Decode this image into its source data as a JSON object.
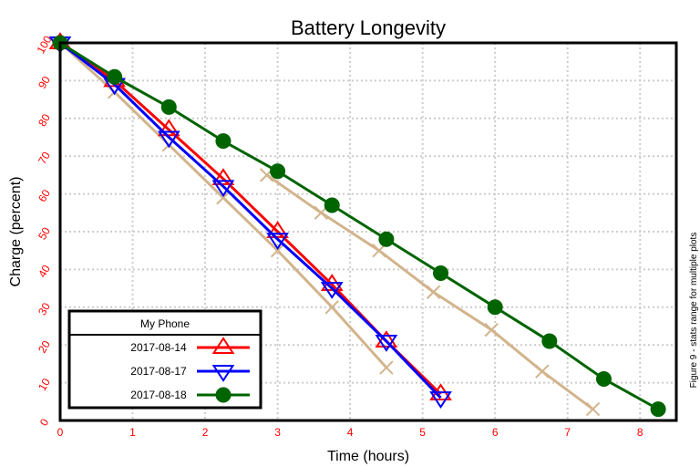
{
  "chart_data": {
    "type": "line",
    "title": "Battery Longevity",
    "xlabel": "Time (hours)",
    "ylabel": "Charge (percent)",
    "side_note": "Figure 9 - stats range for multiple plots",
    "xlim": [
      0,
      8.5
    ],
    "ylim": [
      0,
      100
    ],
    "x_ticks": [
      "0",
      "1",
      "2",
      "3",
      "4",
      "5",
      "6",
      "7",
      "8"
    ],
    "y_ticks": [
      "0",
      "10",
      "20",
      "30",
      "40",
      "50",
      "60",
      "70",
      "80",
      "90",
      "100"
    ],
    "grid": true,
    "legend": {
      "title": "My Phone",
      "placement": "bottom-left",
      "entries": [
        "2017-08-14",
        "2017-08-17",
        "2017-08-18"
      ]
    },
    "colors": {
      "tick_labels": "#ff0000",
      "range": "#d2b48c",
      "grid": "#cccccc"
    },
    "range_series": [
      {
        "x": [
          0,
          0.75,
          1.5,
          2.25,
          3,
          3.75,
          4.5
        ],
        "y": [
          100,
          87,
          73,
          59,
          45,
          30,
          14
        ]
      },
      {
        "x": [
          2.85,
          3.6,
          4.4,
          5.15,
          5.95,
          6.65,
          7.35
        ],
        "y": [
          65,
          55,
          45,
          34,
          24,
          13,
          3
        ]
      }
    ],
    "series": [
      {
        "name": "2017-08-14",
        "color": "#ff0000",
        "marker": "triangle-up",
        "x": [
          0,
          0.75,
          1.5,
          2.25,
          3,
          3.75,
          4.5,
          5.25
        ],
        "y": [
          100,
          90,
          77,
          64,
          50,
          36,
          21,
          7
        ]
      },
      {
        "name": "2017-08-17",
        "color": "#0000ff",
        "marker": "triangle-down",
        "x": [
          0,
          0.75,
          1.5,
          2.25,
          3,
          3.75,
          4.5,
          5.25
        ],
        "y": [
          100,
          89,
          75,
          62,
          48,
          35,
          21,
          6
        ]
      },
      {
        "name": "2017-08-18",
        "color": "#006400",
        "marker": "circle",
        "x": [
          0,
          0.75,
          1.5,
          2.25,
          3,
          3.75,
          4.5,
          5.25,
          6,
          6.75,
          7.5,
          8.25
        ],
        "y": [
          100,
          91,
          83,
          74,
          66,
          57,
          48,
          39,
          30,
          21,
          11,
          3
        ]
      }
    ]
  }
}
